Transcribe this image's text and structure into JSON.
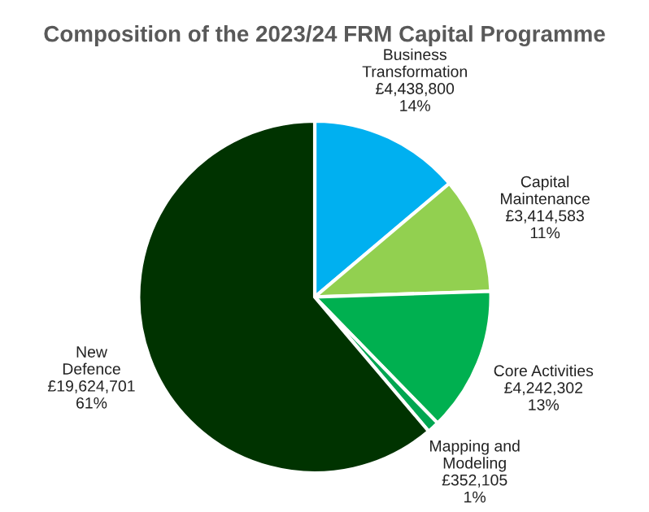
{
  "chart_data": {
    "type": "pie",
    "title": "Composition of the 2023/24 FRM Capital Programme",
    "categories": [
      "Business\nTransformation",
      "Capital\nMaintenance",
      "Core Activities",
      "Mapping and\nModeling",
      "New\nDefence"
    ],
    "values": [
      4438800,
      3414583,
      4242302,
      352105,
      19624701
    ],
    "value_labels": [
      "£4,438,800\n14%",
      "£3,414,583\n11%",
      "£4,242,302\n13%",
      "£352,105\n1%",
      "£19,624,701\n61%"
    ],
    "colors": [
      "#00b0f0",
      "#92d050",
      "#00b050",
      "#00a651",
      "#003300"
    ],
    "legend": false
  }
}
